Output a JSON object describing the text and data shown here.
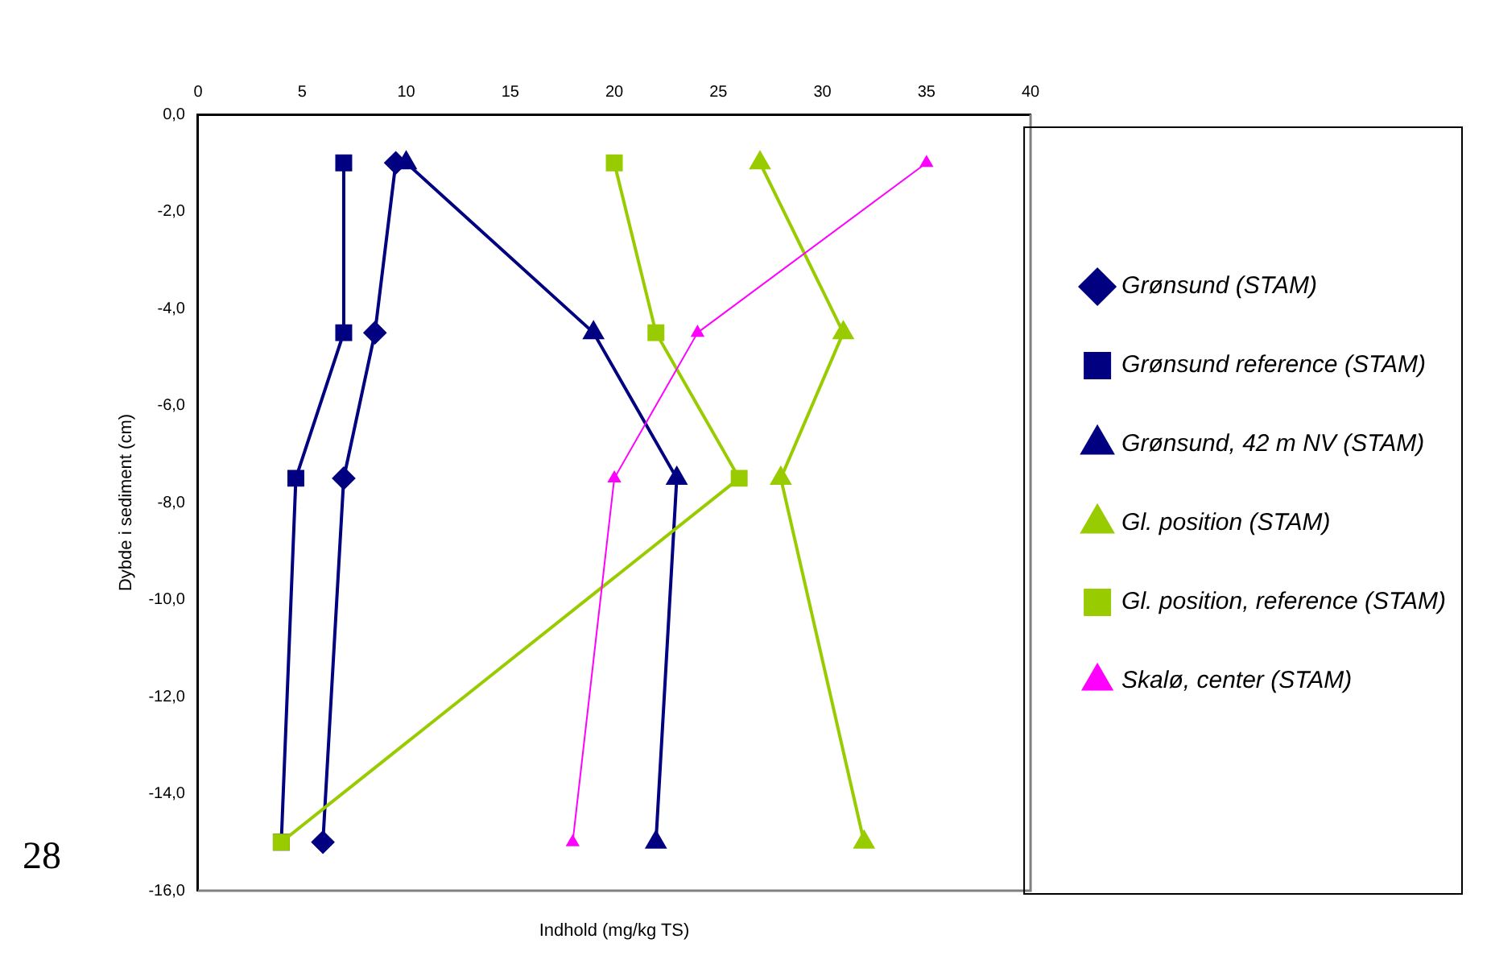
{
  "chart_data": {
    "type": "line",
    "xlabel": "Indhold (mg/kg TS)",
    "ylabel": "Dybde i sediment (cm)",
    "xlim": [
      0,
      40
    ],
    "xticks": [
      0,
      5,
      10,
      15,
      20,
      25,
      30,
      35,
      40
    ],
    "ylim": [
      -16,
      0
    ],
    "yticks": [
      {
        "value": 0,
        "label": "0,0"
      },
      {
        "value": -2,
        "label": "-2,0"
      },
      {
        "value": -4,
        "label": "-4,0"
      },
      {
        "value": -6,
        "label": "-6,0"
      },
      {
        "value": -8,
        "label": "-8,0"
      },
      {
        "value": -10,
        "label": "-10,0"
      },
      {
        "value": -12,
        "label": "-12,0"
      },
      {
        "value": -14,
        "label": "-14,0"
      },
      {
        "value": -16,
        "label": "-16,0"
      }
    ],
    "grid": false,
    "legend": "right",
    "annotations": [
      "28"
    ],
    "series": [
      {
        "name": "Grønsund (STAM)",
        "color": "#000080",
        "marker": "diamond",
        "x": [
          9.5,
          8.5,
          7,
          6
        ],
        "values": [
          -1,
          -4.5,
          -7.5,
          -15
        ]
      },
      {
        "name": "Grønsund reference (STAM)",
        "color": "#000080",
        "marker": "square",
        "x": [
          7,
          7,
          4.7,
          4
        ],
        "values": [
          -1,
          -4.5,
          -7.5,
          -15
        ]
      },
      {
        "name": "Grønsund, 42 m NV (STAM)",
        "color": "#000080",
        "marker": "triangle",
        "x": [
          10,
          19,
          23,
          22
        ],
        "values": [
          -1,
          -4.5,
          -7.5,
          -15
        ]
      },
      {
        "name": "Gl. position (STAM)",
        "color": "#99cc00",
        "marker": "triangle",
        "x": [
          27,
          31,
          28,
          32
        ],
        "values": [
          -1,
          -4.5,
          -7.5,
          -15
        ]
      },
      {
        "name": "Gl. position, reference (STAM)",
        "color": "#99cc00",
        "marker": "square",
        "x": [
          20,
          22,
          26,
          4
        ],
        "values": [
          -1,
          -4.5,
          -7.5,
          -15
        ]
      },
      {
        "name": "Skalø, center (STAM)",
        "color": "#ff00ff",
        "marker": "triangle",
        "x": [
          35,
          24,
          20,
          18
        ],
        "values": [
          -1,
          -4.5,
          -7.5,
          -15
        ]
      }
    ]
  }
}
